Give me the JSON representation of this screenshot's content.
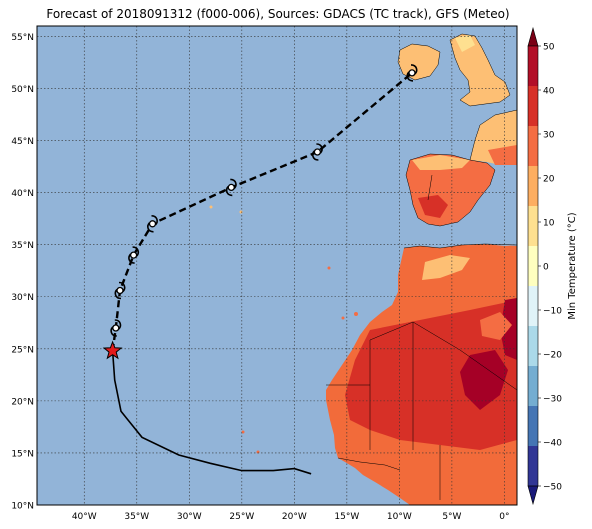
{
  "title": "Forecast of 2018091312 (f000-006), Sources: GDACS (TC track), GFS (Meteo)",
  "map": {
    "lat_labels": [
      "55°N",
      "50°N",
      "45°N",
      "40°N",
      "35°N",
      "30°N",
      "25°N",
      "20°N",
      "15°N",
      "10°N"
    ],
    "lon_labels": [
      "40°W",
      "35°W",
      "30°W",
      "25°W",
      "20°W",
      "15°W",
      "10°W",
      "5°W",
      "0°"
    ],
    "colors": {
      "ocean": "#92b4d8",
      "land_cool": "#fdbf74",
      "land_warm": "#f26b3a",
      "land_hot": "#d73027",
      "land_extreme": "#a50026",
      "track": "#000000",
      "current_position_star": "#e31a1c"
    },
    "track": {
      "past": [
        {
          "lon": -18.4,
          "lat": 13.0
        },
        {
          "lon": -20.0,
          "lat": 13.5
        },
        {
          "lon": -22.0,
          "lat": 13.3
        },
        {
          "lon": -25.0,
          "lat": 13.3
        },
        {
          "lon": -28.0,
          "lat": 14.0
        },
        {
          "lon": -31.0,
          "lat": 14.8
        },
        {
          "lon": -34.5,
          "lat": 16.5
        },
        {
          "lon": -36.5,
          "lat": 19.0
        },
        {
          "lon": -37.1,
          "lat": 22.0
        },
        {
          "lon": -37.3,
          "lat": 24.8
        }
      ],
      "current": {
        "lon": -37.3,
        "lat": 24.8
      },
      "forecast": [
        {
          "lon": -37.0,
          "lat": 27.0
        },
        {
          "lon": -36.6,
          "lat": 30.6
        },
        {
          "lon": -35.3,
          "lat": 34.0
        },
        {
          "lon": -33.5,
          "lat": 37.0
        },
        {
          "lon": -26.0,
          "lat": 40.5
        },
        {
          "lon": -17.8,
          "lat": 43.9
        },
        {
          "lon": -8.8,
          "lat": 51.5
        }
      ],
      "storm_symbols": [
        {
          "lon": -37.0,
          "lat": 27.0
        },
        {
          "lon": -36.6,
          "lat": 30.6
        },
        {
          "lon": -35.3,
          "lat": 34.0
        },
        {
          "lon": -33.5,
          "lat": 37.0
        },
        {
          "lon": -26.0,
          "lat": 40.5
        },
        {
          "lon": -17.8,
          "lat": 43.9
        },
        {
          "lon": -8.8,
          "lat": 51.5
        }
      ]
    }
  },
  "colorbar": {
    "label": "Min Temperature (°C)",
    "ticks": [
      "50",
      "40",
      "30",
      "20",
      "10",
      "0",
      "−10",
      "−20",
      "−30",
      "−40",
      "−50"
    ],
    "colors": [
      "#67001f",
      "#b2182b",
      "#d6604d",
      "#f4a582",
      "#fddbc7",
      "#ffffff",
      "#d1e5f0",
      "#92c5de",
      "#4393c3",
      "#2166ac",
      "#053061"
    ],
    "bands": [
      "#7a0015",
      "#b20f27",
      "#d73027",
      "#f46d43",
      "#fdae61",
      "#fee090",
      "#ffffbf",
      "#e0f3f8",
      "#abd9e9",
      "#74add1",
      "#4575b4",
      "#313695",
      "#1a1a7a"
    ]
  }
}
